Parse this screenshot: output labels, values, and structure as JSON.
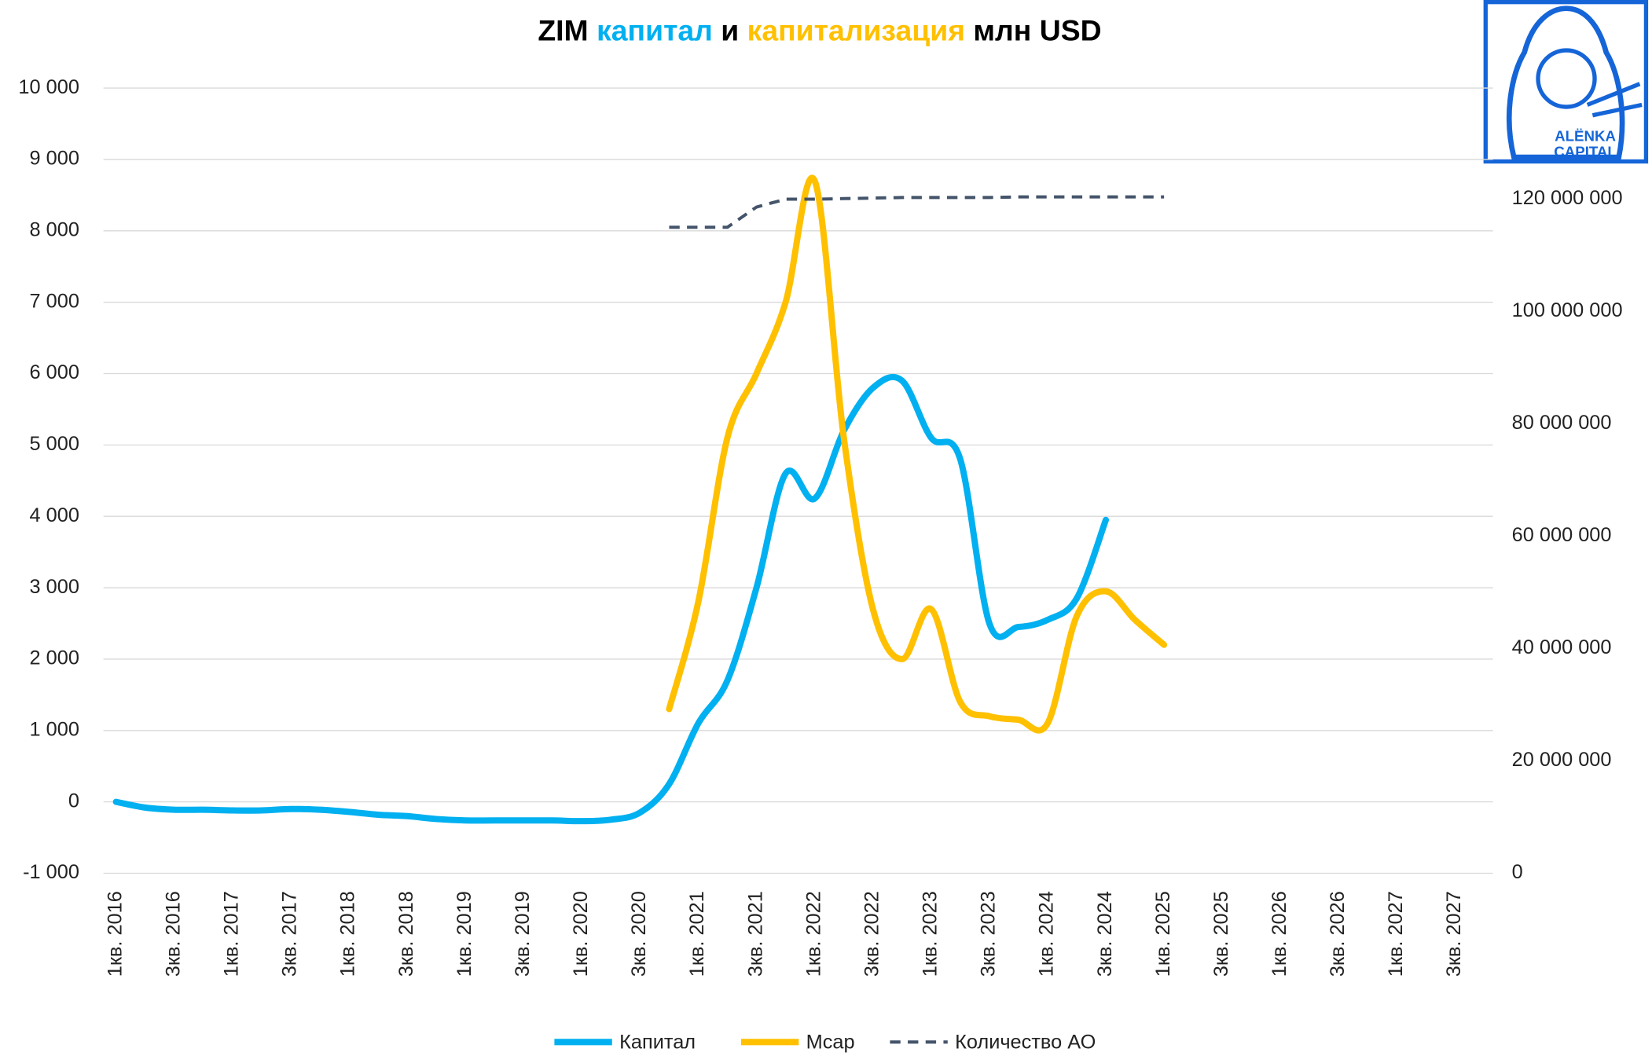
{
  "chart_data": {
    "type": "line",
    "title": [
      {
        "text": "ZIM",
        "color": "#000000"
      },
      {
        "text": "капитал",
        "color": "#00b0f0"
      },
      {
        "text": "и",
        "color": "#000000"
      },
      {
        "text": "капитализация",
        "color": "#ffc000"
      },
      {
        "text": "млн USD",
        "color": "#000000"
      }
    ],
    "logo": [
      "ALËNKA",
      "CAPITAL"
    ],
    "categories": [
      "1кв. 2016",
      null,
      "3кв. 2016",
      null,
      "1кв. 2017",
      null,
      "3кв. 2017",
      null,
      "1кв. 2018",
      null,
      "3кв. 2018",
      null,
      "1кв. 2019",
      null,
      "3кв. 2019",
      null,
      "1кв. 2020",
      null,
      "3кв. 2020",
      null,
      "1кв. 2021",
      null,
      "3кв. 2021",
      null,
      "1кв. 2022",
      null,
      "3кв. 2022",
      null,
      "1кв. 2023",
      null,
      "3кв. 2023",
      null,
      "1кв. 2024",
      null,
      "3кв. 2024",
      null,
      "1кв. 2025",
      null,
      "3кв. 2025",
      null,
      "1кв. 2026",
      null,
      "3кв. 2026",
      null,
      "1кв. 2027",
      null,
      "3кв. 2027",
      null
    ],
    "series": [
      {
        "name": "Капитал",
        "color": "#00b0f0",
        "dash": false,
        "values": [
          0,
          -80,
          -110,
          -110,
          -120,
          -120,
          -100,
          -110,
          -140,
          -180,
          -200,
          -240,
          -260,
          -260,
          -260,
          -260,
          -270,
          -250,
          -150,
          250,
          1100,
          1700,
          3000,
          4600,
          4250,
          5200,
          5800,
          5900,
          5100,
          4800,
          2500,
          2450,
          2550,
          2850,
          3950,
          null,
          null,
          null,
          null,
          null,
          null,
          null,
          null,
          null,
          null,
          null,
          null,
          null
        ]
      },
      {
        "name": "Mcap",
        "color": "#ffc000",
        "dash": false,
        "values": [
          null,
          null,
          null,
          null,
          null,
          null,
          null,
          null,
          null,
          null,
          null,
          null,
          null,
          null,
          null,
          null,
          null,
          null,
          null,
          1300,
          2800,
          5100,
          6000,
          7000,
          8700,
          5100,
          2700,
          2000,
          2700,
          1400,
          1200,
          1150,
          1100,
          2600,
          2950,
          2550,
          2200,
          null,
          null,
          null,
          null,
          null,
          null,
          null,
          null,
          null,
          null,
          null
        ]
      },
      {
        "name": "Количество АО",
        "color": "#44546a",
        "dash": true,
        "axis": "y2",
        "values": [
          null,
          null,
          null,
          null,
          null,
          null,
          null,
          null,
          null,
          null,
          null,
          null,
          null,
          null,
          null,
          null,
          null,
          null,
          null,
          115000000,
          115000000,
          115000000,
          118600000,
          120000000,
          120000000,
          120100000,
          120200000,
          120300000,
          120300000,
          120300000,
          120300000,
          120400000,
          120400000,
          120400000,
          120400000,
          120400000,
          120400000,
          null,
          null,
          null,
          null,
          null,
          null,
          null,
          null,
          null,
          null,
          null
        ]
      }
    ],
    "ylim": [
      -1000,
      10000
    ],
    "yticks": [
      {
        "value": -1000,
        "label": "-1 000"
      },
      0,
      {
        "value": 1000,
        "label": "1 000"
      },
      {
        "value": 2000,
        "label": "2 000"
      },
      {
        "value": 3000,
        "label": "3 000"
      },
      {
        "value": 4000,
        "label": "4 000"
      },
      {
        "value": 5000,
        "label": "5 000"
      },
      {
        "value": 6000,
        "label": "6 000"
      },
      {
        "value": 7000,
        "label": "7 000"
      },
      {
        "value": 8000,
        "label": "8 000"
      },
      {
        "value": 9000,
        "label": "9 000"
      },
      {
        "value": 10000,
        "label": "10 000"
      }
    ],
    "y2lim": [
      0,
      140000000
    ],
    "y2ticks": [
      0,
      {
        "value": 20000000,
        "label": "20 000 000"
      },
      {
        "value": 40000000,
        "label": "40 000 000"
      },
      {
        "value": 60000000,
        "label": "60 000 000"
      },
      {
        "value": 80000000,
        "label": "80 000 000"
      },
      {
        "value": 100000000,
        "label": "100 000 000"
      },
      {
        "value": 120000000,
        "label": "120 000 000"
      }
    ],
    "grid": true,
    "legend": "bottom"
  }
}
